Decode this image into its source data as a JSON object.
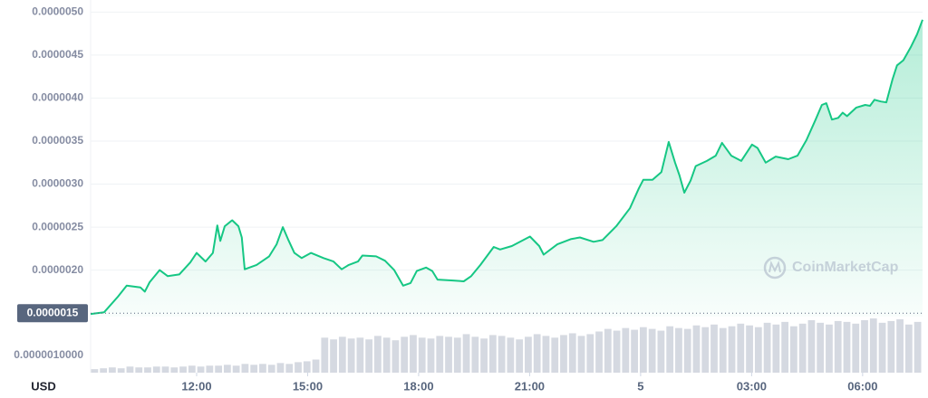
{
  "chart_data": {
    "type": "line",
    "color": "#16c784",
    "x": [
      9.135,
      9.5,
      9.87,
      10.11,
      10.48,
      10.6,
      10.73,
      11.0,
      11.22,
      11.53,
      11.83,
      12.0,
      12.24,
      12.44,
      12.56,
      12.64,
      12.76,
      12.96,
      13.13,
      13.22,
      13.3,
      13.62,
      13.96,
      14.16,
      14.33,
      14.47,
      14.64,
      14.84,
      15.09,
      15.43,
      15.7,
      15.92,
      16.11,
      16.36,
      16.48,
      16.85,
      17.09,
      17.34,
      17.58,
      17.78,
      17.95,
      18.2,
      18.37,
      18.51,
      18.93,
      19.22,
      19.42,
      19.67,
      20.03,
      20.2,
      20.52,
      21.01,
      21.26,
      21.38,
      21.75,
      22.11,
      22.36,
      22.73,
      22.97,
      23.34,
      23.71,
      23.95,
      24.07,
      24.32,
      24.56,
      24.76,
      24.93,
      25.05,
      25.18,
      25.35,
      25.49,
      25.79,
      26.03,
      26.2,
      26.45,
      26.72,
      27.01,
      27.16,
      27.38,
      27.65,
      27.99,
      28.24,
      28.48,
      28.73,
      28.9,
      29.02,
      29.17,
      29.34,
      29.46,
      29.58,
      29.83,
      30.07,
      30.2,
      30.32,
      30.49,
      30.64,
      30.81,
      30.93,
      31.1,
      31.3,
      31.47,
      31.62
    ],
    "values": [
      1.49e-06,
      1.51e-06,
      1.69e-06,
      1.82e-06,
      1.8e-06,
      1.75e-06,
      1.86e-06,
      2e-06,
      1.93e-06,
      1.95e-06,
      2.09e-06,
      2.2e-06,
      2.1e-06,
      2.2e-06,
      2.52e-06,
      2.34e-06,
      2.51e-06,
      2.58e-06,
      2.51e-06,
      2.38e-06,
      2.01e-06,
      2.06e-06,
      2.16e-06,
      2.3e-06,
      2.5e-06,
      2.36e-06,
      2.2e-06,
      2.14e-06,
      2.2e-06,
      2.14e-06,
      2.1e-06,
      2.01e-06,
      2.06e-06,
      2.1e-06,
      2.17e-06,
      2.16e-06,
      2.11e-06,
      2e-06,
      1.82e-06,
      1.85e-06,
      1.99e-06,
      2.03e-06,
      1.99e-06,
      1.89e-06,
      1.88e-06,
      1.87e-06,
      1.93e-06,
      2.06e-06,
      2.27e-06,
      2.24e-06,
      2.28e-06,
      2.39e-06,
      2.28e-06,
      2.18e-06,
      2.3e-06,
      2.36e-06,
      2.38e-06,
      2.33e-06,
      2.35e-06,
      2.51e-06,
      2.72e-06,
      2.95e-06,
      3.05e-06,
      3.05e-06,
      3.14e-06,
      3.49e-06,
      3.25e-06,
      3.1e-06,
      2.9e-06,
      3.04e-06,
      3.21e-06,
      3.27e-06,
      3.33e-06,
      3.48e-06,
      3.33e-06,
      3.27e-06,
      3.46e-06,
      3.42e-06,
      3.25e-06,
      3.32e-06,
      3.29e-06,
      3.33e-06,
      3.51e-06,
      3.75e-06,
      3.92e-06,
      3.94e-06,
      3.75e-06,
      3.77e-06,
      3.83e-06,
      3.79e-06,
      3.89e-06,
      3.92e-06,
      3.91e-06,
      3.98e-06,
      3.96e-06,
      3.95e-06,
      4.22e-06,
      4.38e-06,
      4.44e-06,
      4.59e-06,
      4.74e-06,
      4.91e-06
    ],
    "xlim": [
      9.135,
      31.62
    ],
    "ylim": [
      1.46e-06,
      5.14e-06
    ],
    "xticks": [
      {
        "value": 12,
        "label": "12:00"
      },
      {
        "value": 15,
        "label": "15:00"
      },
      {
        "value": 18,
        "label": "18:00"
      },
      {
        "value": 21,
        "label": "21:00"
      },
      {
        "value": 24,
        "label": "5"
      },
      {
        "value": 27,
        "label": "03:00"
      },
      {
        "value": 30,
        "label": "06:00"
      }
    ],
    "yticks": [
      {
        "value": 5e-06,
        "label": "0.0000050"
      },
      {
        "value": 4.5e-06,
        "label": "0.0000045"
      },
      {
        "value": 4e-06,
        "label": "0.0000040"
      },
      {
        "value": 3.5e-06,
        "label": "0.0000035"
      },
      {
        "value": 3e-06,
        "label": "0.0000030"
      },
      {
        "value": 2.5e-06,
        "label": "0.0000025"
      },
      {
        "value": 2e-06,
        "label": "0.0000020"
      }
    ],
    "baseline": {
      "value": 1.5e-06,
      "label": "0.0000015"
    },
    "grid": true,
    "volume": {
      "color": "#d5d9e1",
      "values": [
        4,
        5,
        6,
        5,
        7,
        6,
        6,
        7,
        7,
        6,
        7,
        8,
        7,
        8,
        8,
        9,
        8,
        10,
        9,
        10,
        9,
        11,
        10,
        12,
        13,
        15,
        40,
        38,
        41,
        39,
        40,
        38,
        42,
        40,
        37,
        41,
        43,
        40,
        39,
        42,
        41,
        40,
        44,
        41,
        39,
        43,
        42,
        40,
        38,
        41,
        44,
        42,
        40,
        43,
        45,
        42,
        44,
        47,
        50,
        48,
        51,
        49,
        52,
        50,
        48,
        53,
        51,
        50,
        54,
        52,
        55,
        51,
        53,
        56,
        54,
        52,
        57,
        55,
        58,
        53,
        56,
        60,
        57,
        55,
        59,
        58,
        56,
        60,
        62,
        57,
        59,
        61,
        55,
        58
      ]
    },
    "volume_label": "0.0000010000",
    "currency": "USD",
    "watermark": "CoinMarketCap"
  }
}
